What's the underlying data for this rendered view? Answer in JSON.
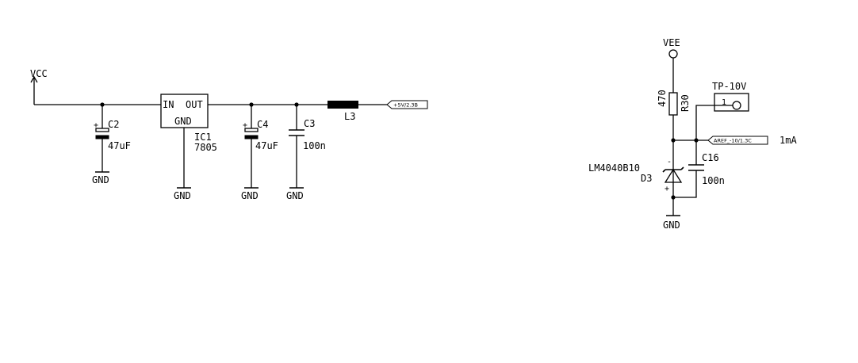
{
  "supplies": {
    "vcc": "VCC",
    "vee": "VEE"
  },
  "gnd_label": "GND",
  "regulator": {
    "ref": "IC1",
    "value": "7805",
    "pin_in": "IN",
    "pin_out": "OUT",
    "pin_gnd": "GND"
  },
  "c2": {
    "ref": "C2",
    "value": "47uF"
  },
  "c4": {
    "ref": "C4",
    "value": "47uF"
  },
  "c3": {
    "ref": "C3",
    "value": "100n"
  },
  "l3": {
    "ref": "L3"
  },
  "net_5v": "+5V/2.3B",
  "r30": {
    "ref": "R30",
    "value": "470"
  },
  "tp": {
    "ref": "TP-10V",
    "pin": "1"
  },
  "net_aref": "AREF_-10/1.3C",
  "current_note": "1mA",
  "d3": {
    "part": "LM4040B10",
    "ref": "D3",
    "minus": "-",
    "plus": "+"
  },
  "c16": {
    "ref": "C16",
    "value": "100n"
  }
}
